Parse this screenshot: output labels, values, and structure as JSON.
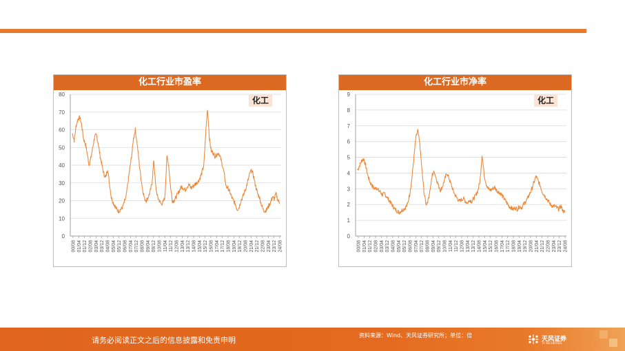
{
  "footer": {
    "disclaimer": "请务必阅读正文之后的信息披露和免责申明",
    "source": "资料来源：Wind、天风证券研究所；单位：倍",
    "logo_text": "天风证券",
    "logo_sub": "TF SECURITIES"
  },
  "colors": {
    "accent": "#e67a2e",
    "title_bg": "#dd6a23",
    "series": "#ec8a3c",
    "label_bg": "#fbe4d6"
  },
  "chart_data": [
    {
      "type": "line",
      "title": "化工行业市盈率",
      "series_label": "化工",
      "ylim": [
        0,
        80
      ],
      "yticks": [
        0,
        10,
        20,
        30,
        40,
        50,
        60,
        70,
        80
      ],
      "xticks": [
        "00/08",
        "01/04",
        "01/12",
        "02/08",
        "03/04",
        "03/12",
        "04/08",
        "05/04",
        "05/12",
        "06/08",
        "07/04",
        "07/12",
        "08/08",
        "09/04",
        "09/12",
        "10/08",
        "11/04",
        "11/12",
        "12/08",
        "13/04",
        "13/12",
        "14/08",
        "15/04",
        "15/12",
        "16/08",
        "17/04",
        "17/12",
        "18/08",
        "19/04",
        "19/12",
        "20/08",
        "21/04",
        "21/12",
        "22/08",
        "23/04",
        "23/12",
        "24/08"
      ],
      "series": [
        {
          "name": "化工",
          "values": [
            58,
            54,
            62,
            66,
            67,
            63,
            55,
            52,
            47,
            40,
            44,
            50,
            56,
            57,
            52,
            45,
            40,
            35,
            33,
            38,
            30,
            22,
            19,
            17,
            15,
            14,
            15,
            16,
            19,
            22,
            30,
            38,
            45,
            55,
            60,
            52,
            42,
            33,
            26,
            21,
            20,
            22,
            25,
            30,
            43,
            28,
            22,
            20,
            18,
            19,
            22,
            45,
            40,
            28,
            20,
            20,
            22,
            24,
            26,
            28,
            27,
            26,
            28,
            29,
            27,
            28,
            29,
            30,
            31,
            33,
            36,
            40,
            58,
            72,
            55,
            48,
            47,
            45,
            46,
            47,
            44,
            40,
            35,
            28,
            27,
            25,
            22,
            20,
            18,
            15,
            16,
            20,
            22,
            25,
            28,
            32,
            36,
            37,
            33,
            28,
            24,
            22,
            18,
            15,
            14,
            15,
            17,
            19,
            22,
            21,
            24,
            20,
            19
          ]
        }
      ]
    },
    {
      "type": "line",
      "title": "化工行业市净率",
      "series_label": "化工",
      "ylim": [
        0,
        9
      ],
      "yticks": [
        0,
        1,
        2,
        3,
        4,
        5,
        6,
        7,
        8,
        9
      ],
      "xticks": [
        "00/08",
        "01/04",
        "01/12",
        "02/08",
        "03/04",
        "03/12",
        "04/08",
        "05/04",
        "05/12",
        "06/08",
        "07/04",
        "07/12",
        "08/08",
        "09/04",
        "09/12",
        "10/08",
        "11/04",
        "11/12",
        "12/08",
        "13/04",
        "13/12",
        "14/08",
        "15/04",
        "15/12",
        "16/08",
        "17/04",
        "17/12",
        "18/08",
        "19/04",
        "19/12",
        "20/08",
        "21/04",
        "21/12",
        "22/08",
        "23/04",
        "23/12",
        "24/08"
      ],
      "series": [
        {
          "name": "化工",
          "values": [
            4.2,
            4.5,
            4.8,
            4.9,
            4.4,
            3.8,
            3.4,
            3.2,
            3.0,
            3.1,
            2.9,
            2.8,
            2.6,
            2.7,
            2.5,
            2.3,
            2.1,
            1.9,
            1.7,
            1.6,
            1.5,
            1.6,
            1.7,
            1.8,
            2.0,
            2.6,
            3.5,
            4.8,
            6.2,
            6.7,
            5.8,
            4.2,
            2.8,
            2.0,
            2.3,
            3.0,
            3.9,
            4.1,
            3.6,
            3.2,
            2.9,
            3.2,
            3.6,
            4.0,
            3.7,
            3.3,
            2.9,
            2.6,
            2.4,
            2.2,
            2.3,
            2.4,
            2.2,
            2.1,
            2.3,
            2.2,
            2.4,
            2.6,
            2.9,
            3.5,
            5.2,
            3.9,
            3.3,
            3.0,
            2.9,
            3.0,
            3.1,
            2.9,
            2.8,
            2.7,
            2.5,
            2.3,
            2.1,
            1.9,
            1.8,
            1.7,
            1.8,
            1.7,
            1.9,
            1.8,
            2.0,
            2.2,
            2.4,
            2.7,
            3.0,
            3.4,
            3.8,
            3.5,
            3.2,
            2.8,
            2.6,
            2.4,
            2.2,
            2.0,
            1.9,
            1.9,
            1.8,
            1.7,
            1.9,
            1.6,
            1.5
          ]
        }
      ]
    }
  ]
}
